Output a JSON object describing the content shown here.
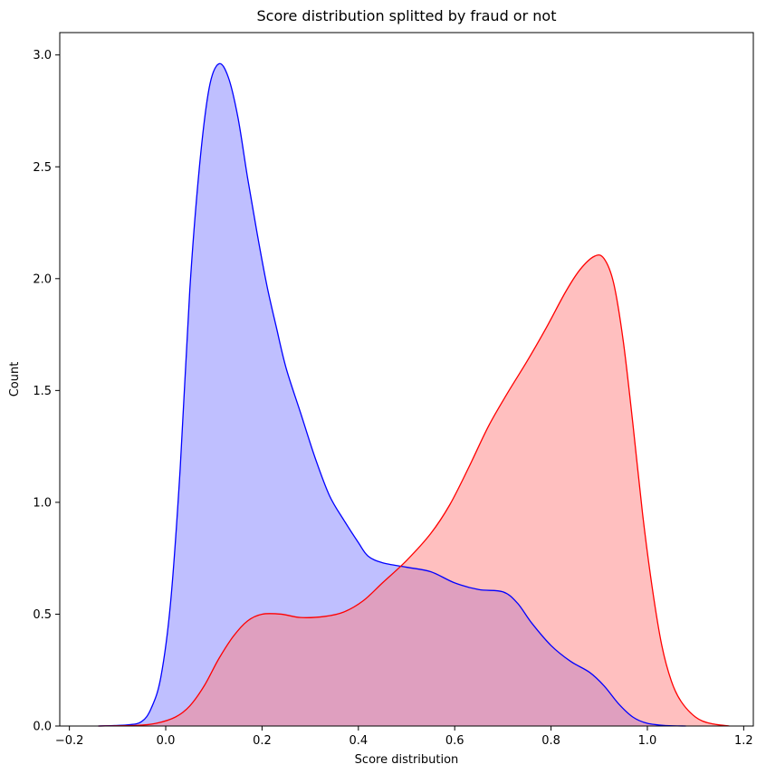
{
  "chart_data": {
    "type": "area",
    "title": "Score distribution splitted by fraud or not",
    "xlabel": "Score distribution",
    "ylabel": "Count",
    "xlim": [
      -0.22,
      1.22
    ],
    "ylim": [
      0,
      3.1
    ],
    "xticks": [
      "-0.2",
      "0.0",
      "0.2",
      "0.4",
      "0.6",
      "0.8",
      "1.0",
      "1.2"
    ],
    "yticks": [
      "0.0",
      "0.5",
      "1.0",
      "1.5",
      "2.0",
      "2.5",
      "3.0"
    ],
    "grid": false,
    "series": [
      {
        "color": "#0000ff",
        "fill": "#8080ff",
        "points": [
          [
            -0.14,
            0.0
          ],
          [
            -0.08,
            0.005
          ],
          [
            -0.05,
            0.02
          ],
          [
            -0.03,
            0.08
          ],
          [
            -0.01,
            0.22
          ],
          [
            0.01,
            0.55
          ],
          [
            0.03,
            1.15
          ],
          [
            0.05,
            1.95
          ],
          [
            0.07,
            2.5
          ],
          [
            0.09,
            2.85
          ],
          [
            0.11,
            2.96
          ],
          [
            0.13,
            2.9
          ],
          [
            0.15,
            2.72
          ],
          [
            0.17,
            2.45
          ],
          [
            0.19,
            2.2
          ],
          [
            0.21,
            1.97
          ],
          [
            0.23,
            1.78
          ],
          [
            0.25,
            1.6
          ],
          [
            0.28,
            1.4
          ],
          [
            0.31,
            1.2
          ],
          [
            0.34,
            1.03
          ],
          [
            0.37,
            0.92
          ],
          [
            0.4,
            0.82
          ],
          [
            0.42,
            0.76
          ],
          [
            0.45,
            0.73
          ],
          [
            0.5,
            0.71
          ],
          [
            0.55,
            0.69
          ],
          [
            0.6,
            0.64
          ],
          [
            0.65,
            0.61
          ],
          [
            0.7,
            0.6
          ],
          [
            0.73,
            0.55
          ],
          [
            0.76,
            0.46
          ],
          [
            0.8,
            0.36
          ],
          [
            0.84,
            0.29
          ],
          [
            0.88,
            0.24
          ],
          [
            0.91,
            0.18
          ],
          [
            0.94,
            0.1
          ],
          [
            0.97,
            0.04
          ],
          [
            1.0,
            0.012
          ],
          [
            1.04,
            0.002
          ],
          [
            1.08,
            0.0
          ]
        ]
      },
      {
        "color": "#ff0000",
        "fill": "#ff8080",
        "points": [
          [
            -0.14,
            0.0
          ],
          [
            -0.06,
            0.003
          ],
          [
            -0.02,
            0.012
          ],
          [
            0.02,
            0.04
          ],
          [
            0.05,
            0.09
          ],
          [
            0.08,
            0.18
          ],
          [
            0.11,
            0.3
          ],
          [
            0.14,
            0.4
          ],
          [
            0.17,
            0.47
          ],
          [
            0.2,
            0.5
          ],
          [
            0.24,
            0.5
          ],
          [
            0.28,
            0.485
          ],
          [
            0.33,
            0.49
          ],
          [
            0.37,
            0.51
          ],
          [
            0.41,
            0.56
          ],
          [
            0.45,
            0.64
          ],
          [
            0.5,
            0.74
          ],
          [
            0.55,
            0.86
          ],
          [
            0.59,
            0.99
          ],
          [
            0.63,
            1.16
          ],
          [
            0.67,
            1.34
          ],
          [
            0.71,
            1.49
          ],
          [
            0.75,
            1.63
          ],
          [
            0.79,
            1.78
          ],
          [
            0.83,
            1.94
          ],
          [
            0.86,
            2.04
          ],
          [
            0.89,
            2.1
          ],
          [
            0.91,
            2.09
          ],
          [
            0.93,
            1.98
          ],
          [
            0.95,
            1.72
          ],
          [
            0.97,
            1.35
          ],
          [
            0.99,
            0.95
          ],
          [
            1.01,
            0.62
          ],
          [
            1.03,
            0.36
          ],
          [
            1.05,
            0.2
          ],
          [
            1.07,
            0.11
          ],
          [
            1.1,
            0.04
          ],
          [
            1.13,
            0.012
          ],
          [
            1.17,
            0.0
          ]
        ]
      }
    ]
  }
}
